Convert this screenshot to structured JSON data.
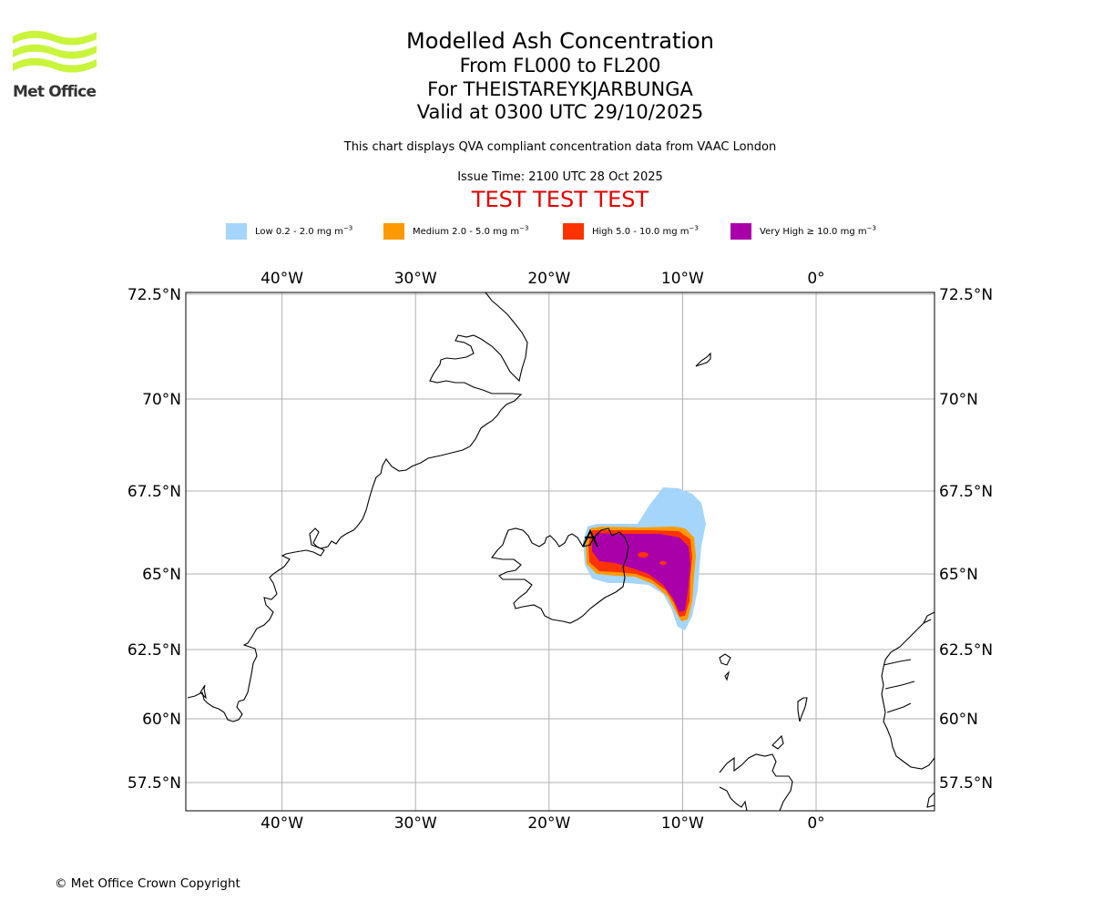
{
  "header": {
    "logo_text": "Met Office",
    "title": "Modelled Ash Concentration",
    "subtitle_levels": "From FL000 to FL200",
    "subtitle_volcano": "For THEISTAREYKJARBUNGA",
    "subtitle_valid": "Valid at 0300 UTC 29/10/2025",
    "note": "This chart displays QVA compliant concentration data from VAAC London",
    "issue_time": "Issue Time: 2100 UTC 28 Oct 2025",
    "test_banner": "TEST TEST TEST"
  },
  "legend": {
    "items": [
      {
        "label": "Low 0.2 - 2.0 mg m",
        "exp": "−3",
        "color": "#a5d5fa"
      },
      {
        "label": "Medium 2.0 - 5.0 mg m",
        "exp": "−3",
        "color": "#ff9900"
      },
      {
        "label": "High 5.0 - 10.0 mg m",
        "exp": "−3",
        "color": "#ff3300"
      },
      {
        "label": "Very High  ≥  10.0 mg m",
        "exp": "−3",
        "color": "#aa00aa"
      }
    ]
  },
  "map": {
    "lon_ticks": [
      {
        "label": "40°W",
        "value": -40
      },
      {
        "label": "30°W",
        "value": -30
      },
      {
        "label": "20°W",
        "value": -20
      },
      {
        "label": "10°W",
        "value": -10
      },
      {
        "label": "0°",
        "value": 0
      }
    ],
    "lat_ticks": [
      {
        "label": "72.5°N",
        "value": 72.5
      },
      {
        "label": "70°N",
        "value": 70
      },
      {
        "label": "67.5°N",
        "value": 67.5
      },
      {
        "label": "65°N",
        "value": 65
      },
      {
        "label": "62.5°N",
        "value": 62.5
      },
      {
        "label": "60°N",
        "value": 60
      },
      {
        "label": "57.5°N",
        "value": 57.5
      }
    ],
    "gridlines": true,
    "colors": {
      "coast": "#000000",
      "grid": "#b0b0b0"
    }
  },
  "footer": {
    "copyright": "© Met Office Crown Copyright"
  }
}
